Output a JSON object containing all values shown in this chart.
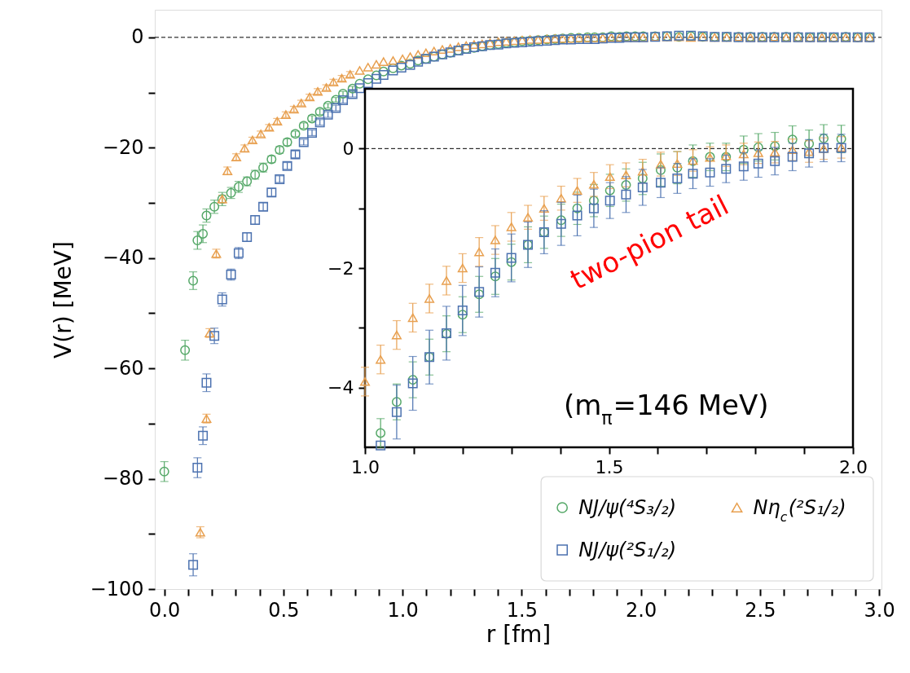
{
  "chart_data": [
    {
      "type": "scatter",
      "xlabel": "r [fm]",
      "ylabel": "V(r) [MeV]",
      "xlim": [
        -0.04,
        3.01
      ],
      "ylim": [
        -100,
        5
      ],
      "xticks": [
        {
          "value": 0,
          "label": "0.0"
        },
        {
          "value": 0.1,
          "label": null
        },
        {
          "value": 0.2,
          "label": null
        },
        {
          "value": 0.3,
          "label": null
        },
        {
          "value": 0.4,
          "label": null
        },
        {
          "value": 0.5,
          "label": "0.5"
        },
        {
          "value": 0.6,
          "label": null
        },
        {
          "value": 0.7,
          "label": null
        },
        {
          "value": 0.8,
          "label": null
        },
        {
          "value": 0.9,
          "label": null
        },
        {
          "value": 1.0,
          "label": "1.0"
        },
        {
          "value": 1.1,
          "label": null
        },
        {
          "value": 1.2,
          "label": null
        },
        {
          "value": 1.3,
          "label": null
        },
        {
          "value": 1.4,
          "label": null
        },
        {
          "value": 1.5,
          "label": "1.5"
        },
        {
          "value": 1.6,
          "label": null
        },
        {
          "value": 1.7,
          "label": null
        },
        {
          "value": 1.8,
          "label": null
        },
        {
          "value": 1.9,
          "label": null
        },
        {
          "value": 2.0,
          "label": "2.0"
        },
        {
          "value": 2.1,
          "label": null
        },
        {
          "value": 2.2,
          "label": null
        },
        {
          "value": 2.3,
          "label": null
        },
        {
          "value": 2.4,
          "label": null
        },
        {
          "value": 2.5,
          "label": "2.5"
        },
        {
          "value": 2.6,
          "label": null
        },
        {
          "value": 2.7,
          "label": null
        },
        {
          "value": 2.8,
          "label": null
        },
        {
          "value": 2.9,
          "label": null
        },
        {
          "value": 3.0,
          "label": "3.0"
        }
      ],
      "yticks": [
        {
          "value": -100,
          "label": "−100"
        },
        {
          "value": -90,
          "label": null
        },
        {
          "value": -80,
          "label": "−80"
        },
        {
          "value": -70,
          "label": null
        },
        {
          "value": -60,
          "label": "−60"
        },
        {
          "value": -50,
          "label": null
        },
        {
          "value": -40,
          "label": "−40"
        },
        {
          "value": -30,
          "label": null
        },
        {
          "value": -20,
          "label": "−20"
        },
        {
          "value": -10,
          "label": null
        },
        {
          "value": 0,
          "label": "0"
        }
      ],
      "grid": false,
      "legend": "bottom right",
      "ref_lines": [
        {
          "axis": "y",
          "value": 0,
          "color": "#000000",
          "line_style": "dashed"
        }
      ],
      "series": [
        {
          "name": "NJ/ψ(⁴S₃/₂)",
          "color": "#55a868",
          "marker": "circle",
          "x": [
            0.0,
            0.087,
            0.121,
            0.139,
            0.162,
            0.177,
            0.21,
            0.243,
            0.28,
            0.312,
            0.347,
            0.381,
            0.415,
            0.45,
            0.484,
            0.516,
            0.55,
            0.585,
            0.62,
            0.653,
            0.687,
            0.72,
            0.75,
            0.79,
            0.82,
            0.855,
            0.89,
            0.92,
            0.96,
            0.995,
            1.032,
            1.065,
            1.098,
            1.132,
            1.167,
            1.2,
            1.234,
            1.267,
            1.3,
            1.334,
            1.367,
            1.402,
            1.435,
            1.469,
            1.502,
            1.535,
            1.569,
            1.606,
            1.64,
            1.672,
            1.707,
            1.74,
            1.776,
            1.806,
            1.84,
            1.876,
            1.91,
            1.94,
            1.976,
            2.01,
            2.06,
            2.11,
            2.16,
            2.21,
            2.26,
            2.31,
            2.36,
            2.41,
            2.46,
            2.51,
            2.56,
            2.61,
            2.66,
            2.71,
            2.76,
            2.81,
            2.86,
            2.91,
            2.96
          ],
          "values": [
            -78.7,
            -56.7,
            -44.1,
            -36.8,
            -35.6,
            -32.3,
            -30.7,
            -29.3,
            -28.2,
            -27.1,
            -26.1,
            -24.9,
            -23.6,
            -22.1,
            -20.4,
            -19.0,
            -17.5,
            -16.0,
            -14.7,
            -13.5,
            -12.4,
            -11.3,
            -10.2,
            -9.3,
            -8.4,
            -7.6,
            -6.9,
            -6.2,
            -5.6,
            -5.1,
            -4.8,
            -4.2,
            -3.9,
            -3.5,
            -3.1,
            -2.8,
            -2.4,
            -2.1,
            -1.9,
            -1.6,
            -1.4,
            -1.2,
            -1.0,
            -0.9,
            -0.7,
            -0.6,
            -0.5,
            -0.4,
            -0.3,
            -0.2,
            -0.1,
            -0.1,
            0.0,
            0.0,
            0.0,
            0.2,
            0.1,
            0.2,
            0.2,
            0.2,
            0.2,
            0.2,
            0.1,
            0.2,
            0.1,
            0.1,
            0.1,
            0.1,
            0.1,
            0.1,
            0.1,
            0.1,
            0.1,
            0.0,
            0.1,
            0.0,
            0.1,
            0.0,
            0.0
          ],
          "errors": [
            1.8,
            1.8,
            1.6,
            1.6,
            1.6,
            1.2,
            1.2,
            1.2,
            1.0,
            1.0,
            0.8,
            0.8,
            0.8,
            0.6,
            0.6,
            0.6,
            0.5,
            0.5,
            0.5,
            0.5,
            0.4,
            0.4,
            0.4,
            0.4,
            null,
            null,
            null,
            null,
            null,
            null,
            null,
            null,
            null,
            null,
            null,
            null,
            null,
            null,
            null,
            null,
            null,
            null,
            null,
            null,
            null,
            null,
            null,
            null,
            null,
            null,
            null,
            null,
            null,
            null,
            null,
            null,
            null,
            null,
            null,
            null,
            null,
            null,
            null,
            null,
            null,
            null,
            null,
            null,
            null,
            null,
            null,
            null,
            null,
            null,
            null,
            null,
            null,
            null,
            null
          ]
        },
        {
          "name": "Nη$_{c}$(²S₁/₂)",
          "color": "#e8a050",
          "marker": "triangle",
          "x": [
            0.151,
            0.177,
            0.19,
            0.218,
            0.243,
            0.265,
            0.302,
            0.337,
            0.37,
            0.405,
            0.44,
            0.474,
            0.51,
            0.544,
            0.575,
            0.61,
            0.644,
            0.68,
            0.71,
            0.745,
            0.78,
            0.82,
            0.855,
            0.89,
            0.92,
            0.96,
            1.0,
            1.032,
            1.065,
            1.098,
            1.132,
            1.167,
            1.2,
            1.234,
            1.267,
            1.3,
            1.334,
            1.367,
            1.402,
            1.435,
            1.469,
            1.502,
            1.535,
            1.569,
            1.606,
            1.64,
            1.672,
            1.707,
            1.74,
            1.776,
            1.806,
            1.84,
            1.876,
            1.91,
            1.94,
            1.976,
            2.01,
            2.06,
            2.11,
            2.16,
            2.21,
            2.26,
            2.31,
            2.36,
            2.41,
            2.46,
            2.51,
            2.56,
            2.61,
            2.66,
            2.71,
            2.76,
            2.81,
            2.86,
            2.91,
            2.96
          ],
          "values": [
            -89.7,
            -69.1,
            -53.6,
            -39.2,
            -29.3,
            -24.2,
            -21.7,
            -20.1,
            -18.6,
            -17.5,
            -16.3,
            -15.2,
            -14.0,
            -13.0,
            -11.9,
            -10.8,
            -9.8,
            -9.1,
            -8.1,
            -7.4,
            -6.7,
            -6.0,
            -5.4,
            -4.9,
            -4.4,
            -4.2,
            -3.9,
            -3.5,
            -3.1,
            -2.8,
            -2.5,
            -2.2,
            -2.0,
            -1.7,
            -1.5,
            -1.3,
            -1.2,
            -1.0,
            -0.8,
            -0.7,
            -0.6,
            -0.5,
            -0.4,
            -0.4,
            -0.3,
            -0.2,
            -0.2,
            -0.2,
            -0.1,
            -0.1,
            -0.1,
            -0.1,
            0.0,
            0.0,
            0.0,
            0.0,
            0.0,
            0.1,
            0.1,
            0.1,
            0.0,
            0.1,
            0.0,
            0.0,
            0.1,
            0.0,
            0.0,
            0.1,
            0.0,
            0.0,
            0.0,
            0.0,
            0.0,
            0.0,
            0.0,
            0.0
          ],
          "errors": [
            1.0,
            0.8,
            0.8,
            0.8,
            0.7,
            0.7,
            0.6,
            0.6,
            0.5,
            0.5,
            0.5,
            0.5,
            0.5,
            0.5,
            0.5,
            0.5,
            0.5,
            0.5,
            0.5,
            0.5,
            0.5,
            null,
            null,
            null,
            null,
            null,
            null,
            null,
            null,
            null,
            null,
            null,
            null,
            null,
            null,
            null,
            null,
            null,
            null,
            null,
            null,
            null,
            null,
            null,
            null,
            null,
            null,
            null,
            null,
            null,
            null,
            null,
            null,
            null,
            null,
            null,
            null,
            null,
            null,
            null,
            null,
            null,
            null,
            null,
            null,
            null,
            null,
            null,
            null,
            null,
            null,
            null,
            null,
            null,
            null,
            null
          ]
        },
        {
          "name": "NJ/ψ(²S₁/₂)",
          "color": "#4c72b0",
          "marker": "square",
          "x": [
            0.121,
            0.139,
            0.162,
            0.177,
            0.21,
            0.243,
            0.28,
            0.312,
            0.347,
            0.381,
            0.415,
            0.45,
            0.484,
            0.516,
            0.55,
            0.585,
            0.62,
            0.653,
            0.687,
            0.72,
            0.75,
            0.79,
            0.82,
            0.855,
            0.89,
            0.92,
            0.96,
            0.995,
            1.032,
            1.065,
            1.098,
            1.132,
            1.167,
            1.2,
            1.234,
            1.267,
            1.3,
            1.334,
            1.367,
            1.402,
            1.435,
            1.469,
            1.502,
            1.535,
            1.569,
            1.606,
            1.64,
            1.672,
            1.707,
            1.74,
            1.776,
            1.806,
            1.84,
            1.876,
            1.91,
            1.94,
            1.976,
            2.01,
            2.06,
            2.11,
            2.16,
            2.21,
            2.26,
            2.31,
            2.36,
            2.41,
            2.46,
            2.51,
            2.56,
            2.61,
            2.66,
            2.71,
            2.76,
            2.81,
            2.86,
            2.91,
            2.96
          ],
          "values": [
            -95.6,
            -78.0,
            -72.2,
            -62.6,
            -54.1,
            -47.5,
            -43.0,
            -39.1,
            -36.2,
            -33.1,
            -30.7,
            -28.1,
            -25.7,
            -23.3,
            -21.2,
            -19.0,
            -17.3,
            -15.4,
            -14.0,
            -12.8,
            -11.4,
            -10.3,
            -9.2,
            -8.3,
            -7.5,
            -6.8,
            -6.0,
            -5.5,
            -5.0,
            -4.4,
            -3.9,
            -3.5,
            -3.1,
            -2.7,
            -2.4,
            -2.1,
            -1.8,
            -1.6,
            -1.4,
            -1.3,
            -1.1,
            -1.0,
            -0.9,
            -0.8,
            -0.7,
            -0.6,
            -0.5,
            -0.4,
            -0.4,
            -0.3,
            -0.3,
            -0.3,
            -0.2,
            -0.1,
            -0.1,
            0.0,
            0.0,
            0.0,
            0.1,
            0.2,
            0.3,
            0.3,
            0.2,
            0.1,
            0.1,
            0.0,
            0.0,
            0.0,
            0.0,
            0.0,
            0.0,
            0.0,
            0.0,
            0.0,
            0.0,
            0.0,
            0.0
          ],
          "errors": [
            2.0,
            1.8,
            1.6,
            1.6,
            1.4,
            1.2,
            1.0,
            1.0,
            0.8,
            0.8,
            0.7,
            0.7,
            0.6,
            0.6,
            0.6,
            0.5,
            0.5,
            0.5,
            0.5,
            0.5,
            0.5,
            0.5,
            null,
            null,
            null,
            null,
            null,
            null,
            null,
            null,
            null,
            null,
            null,
            null,
            null,
            null,
            null,
            null,
            null,
            null,
            null,
            null,
            null,
            null,
            null,
            null,
            null,
            null,
            null,
            null,
            null,
            null,
            null,
            null,
            null,
            null,
            null,
            null,
            null,
            null,
            null,
            null,
            null,
            null,
            null,
            null,
            null,
            null,
            null,
            null,
            null,
            null,
            null,
            null,
            null,
            null,
            null
          ]
        }
      ]
    },
    {
      "type": "scatter",
      "xlim": [
        1.0,
        2.0
      ],
      "ylim": [
        -5,
        1
      ],
      "xticks": [
        {
          "value": 1.0,
          "label": "1.0"
        },
        {
          "value": 1.1,
          "label": null
        },
        {
          "value": 1.2,
          "label": null
        },
        {
          "value": 1.3,
          "label": null
        },
        {
          "value": 1.4,
          "label": null
        },
        {
          "value": 1.5,
          "label": "1.5"
        },
        {
          "value": 1.6,
          "label": null
        },
        {
          "value": 1.7,
          "label": null
        },
        {
          "value": 1.8,
          "label": null
        },
        {
          "value": 1.9,
          "label": null
        },
        {
          "value": 2.0,
          "label": "2.0"
        }
      ],
      "yticks": [
        {
          "value": -4,
          "label": "−4"
        },
        {
          "value": -3,
          "label": null
        },
        {
          "value": -2,
          "label": "−2"
        },
        {
          "value": -1,
          "label": null
        },
        {
          "value": 0,
          "label": "0"
        }
      ],
      "grid": false,
      "ref_lines": [
        {
          "axis": "y",
          "value": 0,
          "color": "#000000",
          "line_style": "dashed"
        }
      ],
      "annotations": [
        "two-pion tail",
        "(m$_{π}$=146 MeV)"
      ],
      "series": [
        {
          "color": "#55a868",
          "marker": "circle",
          "x": [
            1.032,
            1.065,
            1.098,
            1.132,
            1.167,
            1.2,
            1.234,
            1.267,
            1.3,
            1.334,
            1.367,
            1.402,
            1.435,
            1.469,
            1.502,
            1.535,
            1.569,
            1.606,
            1.64,
            1.672,
            1.707,
            1.74,
            1.776,
            1.806,
            1.84,
            1.876,
            1.91,
            1.94,
            1.976
          ],
          "values": [
            -4.76,
            -4.24,
            -3.87,
            -3.49,
            -3.1,
            -2.78,
            -2.44,
            -2.14,
            -1.9,
            -1.61,
            -1.4,
            -1.2,
            -1.0,
            -0.87,
            -0.7,
            -0.61,
            -0.5,
            -0.36,
            -0.32,
            -0.21,
            -0.14,
            -0.14,
            -0.02,
            0.02,
            0.04,
            0.15,
            0.08,
            0.17,
            0.16
          ],
          "errors": [
            0.24,
            0.3,
            0.3,
            0.3,
            0.3,
            0.3,
            0.3,
            0.3,
            0.3,
            0.3,
            0.27,
            0.27,
            0.27,
            0.27,
            0.27,
            0.27,
            0.27,
            0.27,
            0.27,
            0.27,
            0.23,
            0.23,
            0.23,
            0.23,
            0.23,
            0.23,
            0.23,
            0.23,
            0.23
          ]
        },
        {
          "color": "#e8a050",
          "marker": "triangle",
          "x": [
            1.0,
            1.032,
            1.065,
            1.098,
            1.132,
            1.167,
            1.2,
            1.234,
            1.267,
            1.3,
            1.334,
            1.367,
            1.402,
            1.435,
            1.469,
            1.502,
            1.535,
            1.569,
            1.606,
            1.64,
            1.672,
            1.707,
            1.74,
            1.776,
            1.806,
            1.84,
            1.876,
            1.91,
            1.94,
            1.976
          ],
          "values": [
            -3.9,
            -3.53,
            -3.12,
            -2.83,
            -2.51,
            -2.21,
            -2.0,
            -1.73,
            -1.53,
            -1.31,
            -1.15,
            -1.0,
            -0.83,
            -0.7,
            -0.6,
            -0.47,
            -0.44,
            -0.38,
            -0.26,
            -0.25,
            -0.2,
            -0.15,
            -0.12,
            -0.09,
            -0.07,
            -0.06,
            -0.02,
            -0.05,
            0.0,
            0.02
          ],
          "errors": [
            0.24,
            0.24,
            0.24,
            0.24,
            0.24,
            0.24,
            0.24,
            0.24,
            0.24,
            0.24,
            0.2,
            0.2,
            0.2,
            0.2,
            0.2,
            0.2,
            0.2,
            0.2,
            0.2,
            0.2,
            0.18,
            0.18,
            0.18,
            0.18,
            0.18,
            0.18,
            0.18,
            0.18,
            0.18,
            0.18
          ]
        },
        {
          "color": "#4c72b0",
          "marker": "square",
          "x": [
            1.032,
            1.065,
            1.098,
            1.132,
            1.167,
            1.2,
            1.234,
            1.267,
            1.3,
            1.334,
            1.367,
            1.402,
            1.435,
            1.469,
            1.502,
            1.535,
            1.569,
            1.606,
            1.64,
            1.672,
            1.707,
            1.74,
            1.776,
            1.806,
            1.84,
            1.876,
            1.91,
            1.94,
            1.976
          ],
          "values": [
            -4.97,
            -4.41,
            -3.93,
            -3.49,
            -3.09,
            -2.71,
            -2.4,
            -2.08,
            -1.83,
            -1.61,
            -1.4,
            -1.26,
            -1.12,
            -1.0,
            -0.87,
            -0.77,
            -0.65,
            -0.57,
            -0.5,
            -0.42,
            -0.4,
            -0.34,
            -0.3,
            -0.25,
            -0.21,
            -0.14,
            -0.08,
            0.01,
            0.01
          ],
          "errors": [
            null,
            0.45,
            0.45,
            0.45,
            0.45,
            0.42,
            0.42,
            0.4,
            0.4,
            0.38,
            0.36,
            0.36,
            0.34,
            0.32,
            0.3,
            0.3,
            0.3,
            0.25,
            0.25,
            0.25,
            0.23,
            0.23,
            0.23,
            0.23,
            0.23,
            0.23,
            0.23,
            0.23,
            0.23
          ]
        }
      ]
    }
  ]
}
